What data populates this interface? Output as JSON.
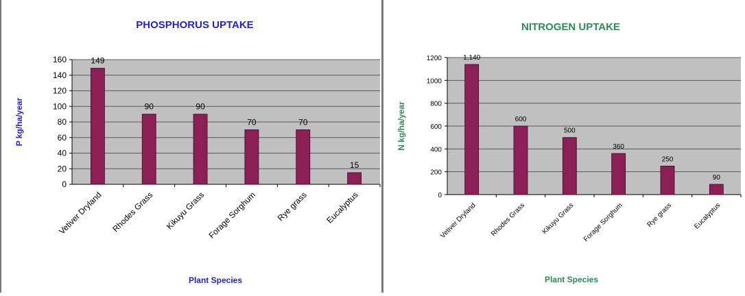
{
  "chart_data": [
    {
      "type": "bar",
      "title": "PHOSPHORUS UPTAKE",
      "xlabel": "Plant Species",
      "ylabel": "P kg/ha/year",
      "categories": [
        "Vetiver Dryland",
        "Rhodes Grass",
        "Kikuyu Grass",
        "Forage Sorghum",
        "Rye grass",
        "Eucalyptus"
      ],
      "values": [
        149,
        90,
        90,
        70,
        70,
        15
      ],
      "data_labels": [
        "149",
        "90",
        "90",
        "70",
        "70",
        "15"
      ],
      "yticks": [
        "0",
        "20",
        "40",
        "60",
        "80",
        "100",
        "120",
        "140",
        "160"
      ],
      "ylim": [
        0,
        160
      ],
      "grid": true,
      "colors": {
        "bar": "#8c1f56",
        "plot_bg": "#c0c0c0",
        "title": "#2323c8",
        "axis_title": "#2323c8"
      }
    },
    {
      "type": "bar",
      "title": "NITROGEN UPTAKE",
      "xlabel": "Plant Species",
      "ylabel": "N kg/ha/year",
      "categories": [
        "Vetiver Dryland",
        "Rhodes Grass",
        "Kikuyu Grass",
        "Forage Sorghum",
        "Rye grass",
        "Eucalyptus"
      ],
      "values": [
        1140,
        600,
        500,
        360,
        250,
        90
      ],
      "data_labels": [
        "1,140",
        "600",
        "500",
        "360",
        "250",
        "90"
      ],
      "yticks": [
        "0",
        "200",
        "400",
        "600",
        "800",
        "1000",
        "1200"
      ],
      "ylim": [
        0,
        1200
      ],
      "grid": true,
      "colors": {
        "bar": "#8c1f56",
        "plot_bg": "#c0c0c0",
        "title": "#2e8b57",
        "axis_title": "#2e8b57"
      }
    }
  ]
}
